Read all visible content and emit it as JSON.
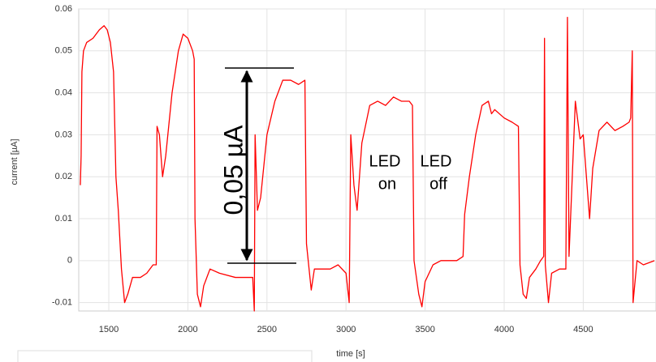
{
  "chart_data": {
    "type": "line",
    "x_label": "time [s]",
    "y_label": "current [µA]",
    "annotations": [
      "0,05 µA",
      "LED",
      "on",
      "LED",
      "off"
    ],
    "color": "#ff0000",
    "x": [
      1320,
      1325,
      1330,
      1340,
      1360,
      1400,
      1440,
      1470,
      1490,
      1510,
      1530,
      1545,
      1560,
      1580,
      1600,
      1620,
      1650,
      1700,
      1740,
      1780,
      1800,
      1805,
      1820,
      1840,
      1860,
      1900,
      1940,
      1970,
      2000,
      2030,
      2040,
      2045,
      2060,
      2080,
      2100,
      2140,
      2200,
      2300,
      2410,
      2420,
      2425,
      2440,
      2460,
      2500,
      2550,
      2600,
      2650,
      2700,
      2740,
      2750,
      2780,
      2800,
      2850,
      2900,
      2950,
      3000,
      3020,
      3030,
      3050,
      3070,
      3100,
      3150,
      3200,
      3250,
      3300,
      3350,
      3400,
      3420,
      3430,
      3460,
      3480,
      3500,
      3550,
      3600,
      3700,
      3740,
      3750,
      3780,
      3820,
      3860,
      3900,
      3920,
      3940,
      4000,
      4050,
      4090,
      4100,
      4120,
      4140,
      4160,
      4200,
      4230,
      4250,
      4255,
      4260,
      4280,
      4300,
      4350,
      4390,
      4400,
      4410,
      4450,
      4480,
      4500,
      4520,
      4540,
      4560,
      4600,
      4650,
      4700,
      4750,
      4790,
      4800,
      4810,
      4815,
      4840,
      4880,
      4950
    ],
    "values": [
      0.018,
      0.025,
      0.045,
      0.05,
      0.052,
      0.053,
      0.055,
      0.056,
      0.055,
      0.052,
      0.045,
      0.02,
      0.012,
      -0.002,
      -0.01,
      -0.008,
      -0.004,
      -0.004,
      -0.003,
      -0.001,
      -0.001,
      0.032,
      0.03,
      0.02,
      0.025,
      0.04,
      0.05,
      0.054,
      0.053,
      0.05,
      0.048,
      0.01,
      -0.008,
      -0.011,
      -0.006,
      -0.002,
      -0.003,
      -0.004,
      -0.004,
      -0.012,
      0.03,
      0.012,
      0.015,
      0.03,
      0.038,
      0.043,
      0.043,
      0.042,
      0.043,
      0.004,
      -0.007,
      -0.002,
      -0.002,
      -0.002,
      -0.001,
      -0.003,
      -0.01,
      0.03,
      0.018,
      0.012,
      0.028,
      0.037,
      0.038,
      0.037,
      0.039,
      0.038,
      0.038,
      0.037,
      0.0,
      -0.008,
      -0.011,
      -0.005,
      -0.001,
      0,
      0,
      0.001,
      0.011,
      0.02,
      0.03,
      0.037,
      0.038,
      0.035,
      0.036,
      0.034,
      0.033,
      0.032,
      -0.001,
      -0.008,
      -0.009,
      -0.004,
      -0.002,
      0,
      0.001,
      0.053,
      -0.001,
      -0.01,
      -0.003,
      -0.002,
      -0.002,
      0.058,
      0.001,
      0.038,
      0.029,
      0.03,
      0.02,
      0.01,
      0.022,
      0.031,
      0.033,
      0.031,
      0.032,
      0.033,
      0.034,
      0.05,
      -0.01,
      0.0,
      -0.001,
      0.0
    ],
    "xlim": [
      1310,
      4960
    ],
    "xticks": [
      1500,
      2000,
      2500,
      3000,
      3500,
      4000,
      4500
    ],
    "ylim": [
      -0.012,
      0.06
    ],
    "yticks": [
      -0.01,
      0,
      0.01,
      0.02,
      0.03,
      0.04,
      0.05,
      0.06
    ],
    "grid": true
  }
}
